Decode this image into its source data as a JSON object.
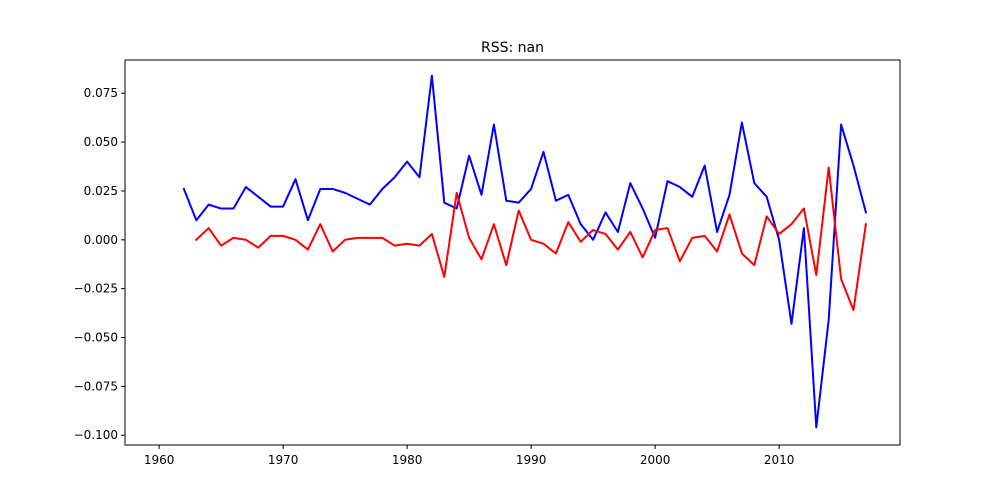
{
  "chart_data": {
    "type": "line",
    "title": "RSS: nan",
    "xlabel": "",
    "ylabel": "",
    "xlim": [
      1957.25,
      2019.75
    ],
    "ylim": [
      -0.105,
      0.092
    ],
    "xticks": [
      1960,
      1970,
      1980,
      1990,
      2000,
      2010
    ],
    "yticks": [
      {
        "value": 0.075,
        "label": "0.075"
      },
      {
        "value": 0.05,
        "label": "0.050"
      },
      {
        "value": 0.025,
        "label": "0.025"
      },
      {
        "value": 0.0,
        "label": "0.000"
      },
      {
        "value": -0.025,
        "label": "−0.025"
      },
      {
        "value": -0.05,
        "label": "−0.050"
      },
      {
        "value": -0.075,
        "label": "−0.075"
      },
      {
        "value": -0.1,
        "label": "−0.100"
      }
    ],
    "grid": false,
    "series": [
      {
        "color": "#0000ff",
        "x": [
          1962,
          1963,
          1964,
          1965,
          1966,
          1967,
          1968,
          1969,
          1970,
          1971,
          1972,
          1973,
          1974,
          1975,
          1976,
          1977,
          1978,
          1979,
          1980,
          1981,
          1982,
          1983,
          1984,
          1985,
          1986,
          1987,
          1988,
          1989,
          1990,
          1991,
          1992,
          1993,
          1994,
          1995,
          1996,
          1997,
          1998,
          1999,
          2000,
          2001,
          2002,
          2003,
          2004,
          2005,
          2006,
          2007,
          2008,
          2009,
          2010,
          2011,
          2012,
          2013,
          2014,
          2015,
          2016,
          2017
        ],
        "y": [
          0.026,
          0.01,
          0.018,
          0.016,
          0.016,
          0.027,
          0.022,
          0.017,
          0.017,
          0.031,
          0.01,
          0.026,
          0.026,
          0.024,
          0.021,
          0.018,
          0.026,
          0.032,
          0.04,
          0.032,
          0.084,
          0.019,
          0.016,
          0.043,
          0.023,
          0.059,
          0.02,
          0.019,
          0.026,
          0.045,
          0.02,
          0.023,
          0.008,
          0.0,
          0.014,
          0.004,
          0.029,
          0.016,
          0.001,
          0.03,
          0.027,
          0.022,
          0.038,
          0.004,
          0.023,
          0.06,
          0.029,
          0.022,
          0.0,
          -0.043,
          0.006,
          -0.096,
          -0.041,
          0.059,
          0.038,
          0.014
        ]
      },
      {
        "color": "#ff0000",
        "x": [
          1963,
          1964,
          1965,
          1966,
          1967,
          1968,
          1969,
          1970,
          1971,
          1972,
          1973,
          1974,
          1975,
          1976,
          1977,
          1978,
          1979,
          1980,
          1981,
          1982,
          1983,
          1984,
          1985,
          1986,
          1987,
          1988,
          1989,
          1990,
          1991,
          1992,
          1993,
          1994,
          1995,
          1996,
          1997,
          1998,
          1999,
          2000,
          2001,
          2002,
          2003,
          2004,
          2005,
          2006,
          2007,
          2008,
          2009,
          2010,
          2011,
          2012,
          2013,
          2014,
          2015,
          2016,
          2017
        ],
        "y": [
          0.0,
          0.006,
          -0.003,
          0.001,
          0.0,
          -0.004,
          0.002,
          0.002,
          0.0,
          -0.005,
          0.008,
          -0.006,
          0.0,
          0.001,
          0.001,
          0.001,
          -0.003,
          -0.002,
          -0.003,
          0.003,
          -0.019,
          0.024,
          0.001,
          -0.01,
          0.008,
          -0.013,
          0.015,
          0.0,
          -0.002,
          -0.007,
          0.009,
          -0.001,
          0.005,
          0.003,
          -0.005,
          0.004,
          -0.009,
          0.005,
          0.006,
          -0.011,
          0.001,
          0.002,
          -0.006,
          0.013,
          -0.007,
          -0.013,
          0.012,
          0.003,
          0.008,
          0.016,
          -0.018,
          0.037,
          -0.02,
          -0.036,
          0.008
        ]
      }
    ]
  }
}
